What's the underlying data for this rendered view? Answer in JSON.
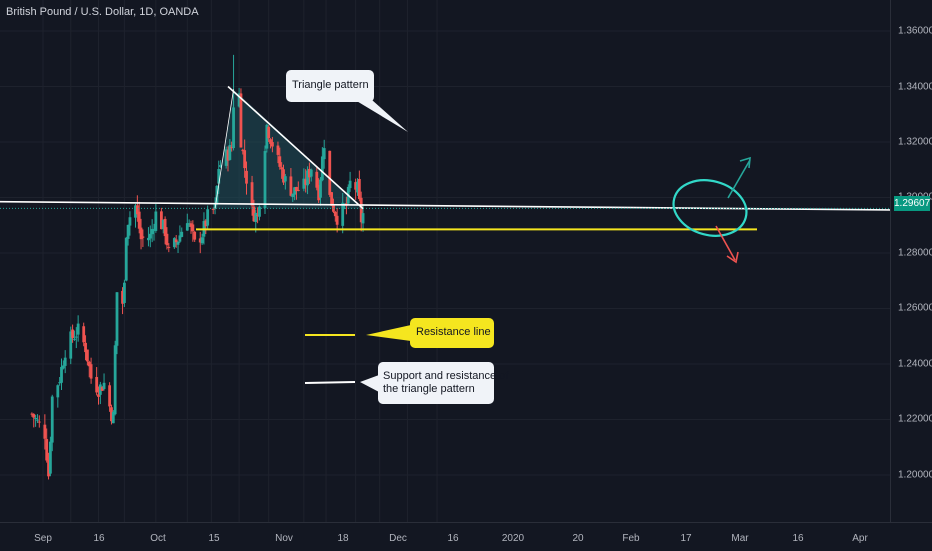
{
  "header": {
    "symbol": "British Pound / U.S. Dollar, 1D, OANDA"
  },
  "price_tag": "1.29607",
  "annotations": {
    "triangle": "Triangle pattern",
    "resistance": "Resistance line",
    "support_line1": "Support and resistance of",
    "support_line2": "the triangle pattern"
  },
  "colors": {
    "background": "#131722",
    "up": "#26a69a",
    "down": "#ef5350",
    "resistance_line": "#f5e61f",
    "triangle_line": "#ffffff",
    "circle": "#32d8c8",
    "arrow_up": "#26a69a",
    "arrow_down": "#ef5350"
  },
  "chart_data": {
    "type": "candlestick",
    "title": "British Pound / U.S. Dollar, 1D, OANDA",
    "ylim": [
      1.19,
      1.365
    ],
    "y_ticks": [
      "1.36000",
      "1.34000",
      "1.32000",
      "1.30000",
      "1.28000",
      "1.26000",
      "1.24000",
      "1.22000",
      "1.20000"
    ],
    "x_ticks": [
      "Sep",
      "16",
      "Oct",
      "15",
      "Nov",
      "18",
      "Dec",
      "16",
      "2020",
      "20",
      "Feb",
      "17",
      "Mar",
      "16",
      "Apr"
    ],
    "last_price": 1.29607,
    "resistance_level": 1.2885,
    "triangle_lower": 1.296,
    "triangle_upper_start": 1.339,
    "triangle_upper_end": 1.296,
    "anchors": [
      [
        "2019-08-26",
        1.222
      ],
      [
        "2019-09-02",
        1.215
      ],
      [
        "2019-09-04",
        1.2
      ],
      [
        "2019-09-06",
        1.228
      ],
      [
        "2019-09-10",
        1.235
      ],
      [
        "2019-09-13",
        1.245
      ],
      [
        "2019-09-16",
        1.249
      ],
      [
        "2019-09-20",
        1.252
      ],
      [
        "2019-09-24",
        1.246
      ],
      [
        "2019-09-27",
        1.235
      ],
      [
        "2019-10-01",
        1.231
      ],
      [
        "2019-10-04",
        1.233
      ],
      [
        "2019-10-08",
        1.222
      ],
      [
        "2019-10-09",
        1.221
      ],
      [
        "2019-10-10",
        1.246
      ],
      [
        "2019-10-11",
        1.266
      ],
      [
        "2019-10-14",
        1.262
      ],
      [
        "2019-10-15",
        1.268
      ],
      [
        "2019-10-16",
        1.288
      ],
      [
        "2019-10-17",
        1.292
      ],
      [
        "2019-10-21",
        1.297
      ],
      [
        "2019-10-24",
        1.285
      ],
      [
        "2019-10-29",
        1.286
      ],
      [
        "2019-11-01",
        1.294
      ],
      [
        "2019-11-06",
        1.288
      ],
      [
        "2019-11-08",
        1.28
      ],
      [
        "2019-11-13",
        1.285
      ],
      [
        "2019-11-18",
        1.293
      ],
      [
        "2019-11-22",
        1.283
      ],
      [
        "2019-11-26",
        1.287
      ],
      [
        "2019-11-29",
        1.293
      ],
      [
        "2019-12-03",
        1.296
      ],
      [
        "2019-12-05",
        1.311
      ],
      [
        "2019-12-09",
        1.315
      ],
      [
        "2019-12-11",
        1.317
      ],
      [
        "2019-12-12",
        1.318
      ],
      [
        "2019-12-13",
        1.334
      ],
      [
        "2019-12-16",
        1.337
      ],
      [
        "2019-12-17",
        1.321
      ],
      [
        "2019-12-19",
        1.311
      ],
      [
        "2019-12-23",
        1.295
      ],
      [
        "2019-12-26",
        1.293
      ],
      [
        "2019-12-31",
        1.326
      ],
      [
        "2020-01-06",
        1.313
      ],
      [
        "2020-01-10",
        1.306
      ],
      [
        "2020-01-14",
        1.302
      ],
      [
        "2020-01-20",
        1.304
      ],
      [
        "2020-01-24",
        1.311
      ],
      [
        "2020-01-28",
        1.302
      ],
      [
        "2020-01-31",
        1.32
      ],
      [
        "2020-02-03",
        1.3
      ],
      [
        "2020-02-07",
        1.293
      ],
      [
        "2020-02-12",
        1.297
      ],
      [
        "2020-02-14",
        1.305
      ],
      [
        "2020-02-18",
        1.303
      ],
      [
        "2020-02-20",
        1.292
      ],
      [
        "2020-02-21",
        1.294
      ]
    ]
  }
}
